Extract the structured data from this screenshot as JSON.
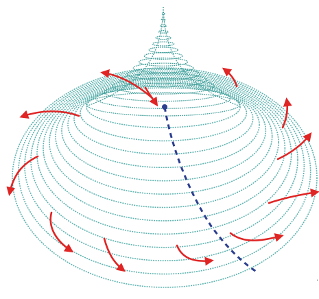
{
  "diagram": {
    "colors": {
      "background": "#ffffff",
      "spiral": "#5fb3b0",
      "cone": "#3f9c98",
      "axis": "#2c3f8f",
      "arrows": "#e02525"
    },
    "elements": {
      "spiral_turns": 13,
      "cone_rings": 16,
      "outward_arrows": 14,
      "central_axis_line": "dashed"
    }
  }
}
